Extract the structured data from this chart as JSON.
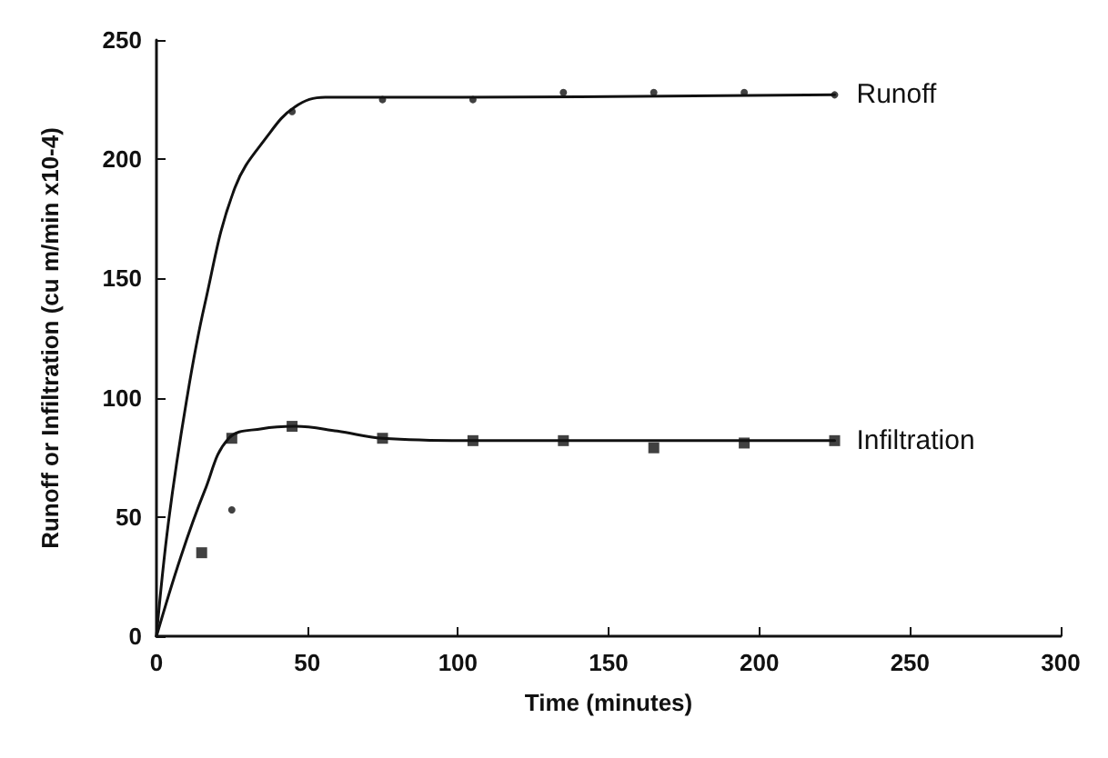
{
  "chart_data": {
    "type": "scatter",
    "xlabel": "Time (minutes)",
    "ylabel": "Runoff or Infiltration (cu m/min x10-4)",
    "xlim": [
      0,
      300
    ],
    "xticks": [
      0,
      50,
      100,
      150,
      200,
      250,
      300
    ],
    "ylim": [
      0,
      250
    ],
    "yticks": [
      0,
      50,
      100,
      150,
      200,
      250
    ],
    "grid": false,
    "legend": false,
    "series": [
      {
        "marker": "circle",
        "color": "#111111",
        "x": [
          25,
          45,
          75,
          105,
          135,
          165,
          195,
          225
        ],
        "values": [
          53,
          220,
          225,
          225,
          228,
          228,
          228,
          227
        ]
      },
      {
        "type": "line",
        "name": "Runoff",
        "marker": "none",
        "color": "#111111",
        "x": [
          0,
          4,
          10,
          16,
          26,
          37,
          46,
          56,
          100,
          225
        ],
        "values": [
          0,
          48,
          99,
          139,
          188,
          210,
          222,
          226,
          226,
          227
        ]
      },
      {
        "marker": "square",
        "color": "#111111",
        "x": [
          15,
          25,
          45,
          75,
          105,
          135,
          165,
          195,
          225
        ],
        "values": [
          35,
          83,
          88,
          83,
          82,
          82,
          79,
          81,
          82
        ]
      },
      {
        "type": "line",
        "name": "Infiltration",
        "marker": "none",
        "color": "#111111",
        "x": [
          0,
          8,
          16,
          24,
          35,
          46,
          60,
          75,
          105,
          225
        ],
        "values": [
          0,
          33,
          61,
          83,
          87,
          88,
          86,
          83,
          82,
          82
        ]
      }
    ]
  }
}
